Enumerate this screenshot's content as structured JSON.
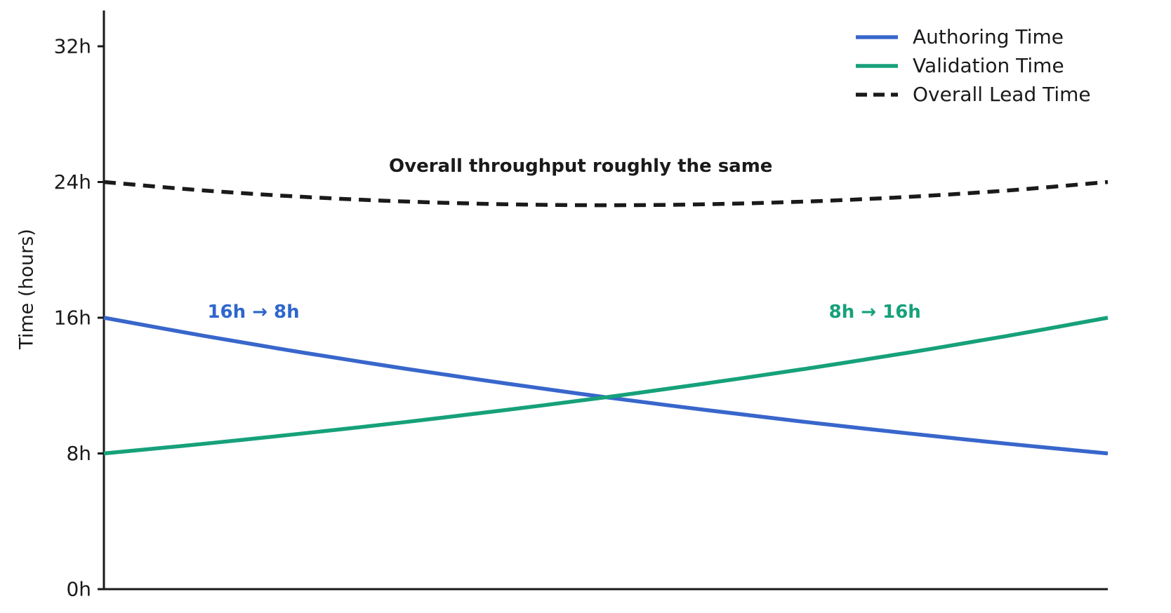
{
  "figure": {
    "background": "#ffffff",
    "axis_color": "#1a1a1a",
    "text_color": "#1a1a1a"
  },
  "chart_data": {
    "type": "line",
    "title": "",
    "xlabel": "",
    "ylabel": "Time (hours)",
    "ylim": [
      0,
      34
    ],
    "xlim": [
      0,
      1
    ],
    "grid": false,
    "x_tick_labels": [],
    "yticks": [
      {
        "value": 0,
        "label": "0h"
      },
      {
        "value": 8,
        "label": "8h"
      },
      {
        "value": 16,
        "label": "16h"
      },
      {
        "value": 24,
        "label": "24h"
      },
      {
        "value": 32,
        "label": "32h"
      }
    ],
    "x": [
      0,
      0.1,
      0.2,
      0.3,
      0.4,
      0.5,
      0.6,
      0.7,
      0.8,
      0.9,
      1.0
    ],
    "series": [
      {
        "name": "Authoring Time",
        "color": "#3866cb",
        "style": "solid",
        "values": [
          16.0,
          14.93,
          13.93,
          13.0,
          12.13,
          11.31,
          10.56,
          9.85,
          9.19,
          8.57,
          8.0
        ]
      },
      {
        "name": "Validation Time",
        "color": "#16a17a",
        "style": "solid",
        "values": [
          8.0,
          8.57,
          9.19,
          9.85,
          10.56,
          11.31,
          12.13,
          13.0,
          13.93,
          14.93,
          16.0
        ]
      },
      {
        "name": "Overall Lead Time",
        "color": "#1a1a1a",
        "style": "dashed",
        "values": [
          24.0,
          23.5,
          23.12,
          22.85,
          22.69,
          22.63,
          22.69,
          22.85,
          23.12,
          23.5,
          24.0
        ]
      }
    ],
    "legend": {
      "position": "upper right"
    },
    "annotations": [
      {
        "text": "16h → 8h",
        "color": "#2e66cc",
        "x": 0.149,
        "y": 16.35,
        "bold": true
      },
      {
        "text": "8h → 16h",
        "color": "#16a17a",
        "x": 0.768,
        "y": 16.35,
        "bold": true
      },
      {
        "text": "Overall throughput roughly the same",
        "color": "#1a1a1a",
        "x": 0.475,
        "y": 24.93,
        "bold": true
      }
    ]
  }
}
